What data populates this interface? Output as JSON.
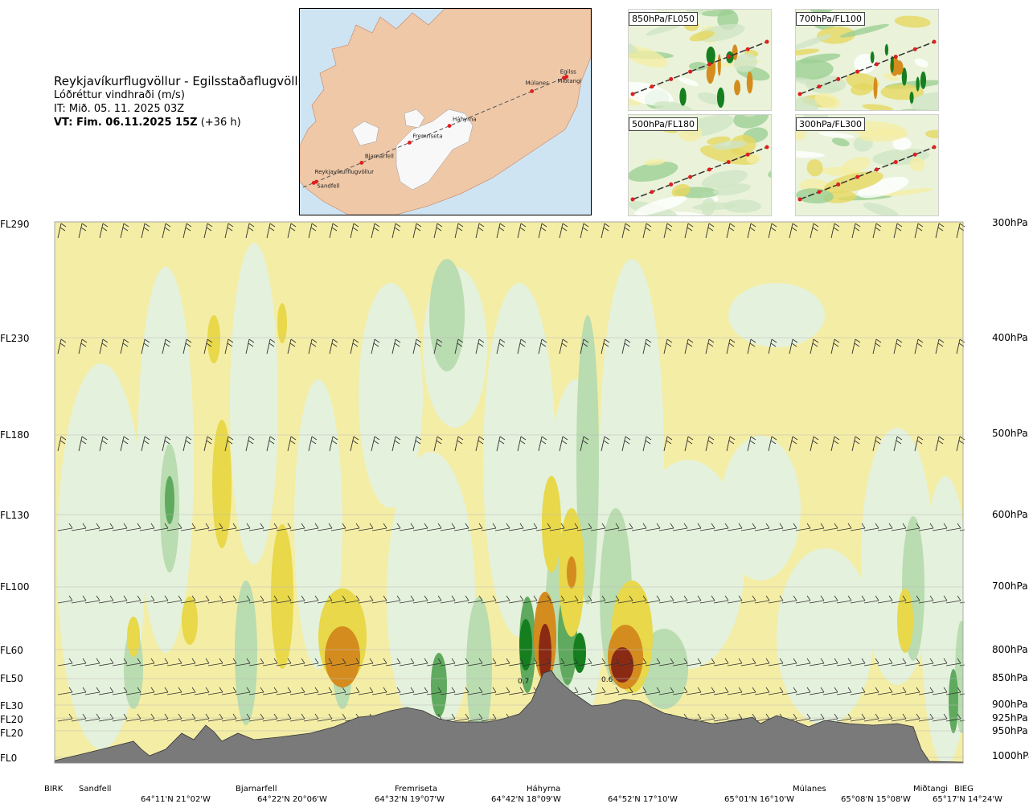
{
  "header": {
    "route": "Reykjavíkurflugvöllur - Egilsstaðaflugvöllur",
    "parameter": "Lóðréttur vindhraði (m/s)",
    "issue_time": "IT: Mið. 05. 11. 2025 03Z",
    "valid_label": "VT: Fim. 06.11.2025 15Z",
    "valid_offset": "(+36 h)"
  },
  "map": {
    "places": [
      "Reykjavíkurflugvöllur",
      "Sandfell",
      "Bjarnarfell",
      "Fremriseta",
      "Háhyrna",
      "Múlanes",
      "Egilss",
      "Miðtangi"
    ]
  },
  "thumbnails": [
    {
      "label": "850hPa/FL050"
    },
    {
      "label": "700hPa/FL100"
    },
    {
      "label": "500hPa/FL180"
    },
    {
      "label": "300hPa/FL300"
    }
  ],
  "colors": {
    "terrain": "#7a7a7a",
    "positive_light": "#f5efa6",
    "positive_mid": "#e8d84a",
    "positive_strong": "#d48c1e",
    "positive_max": "#8b2a14",
    "negative_light": "#e4f1dc",
    "negative_mid": "#b9dcb0",
    "negative_strong": "#5faa5e",
    "negative_max": "#157f1f"
  },
  "chart_data": {
    "type": "heatmap",
    "title": "Lóðréttur vindhraði (m/s)",
    "y_levels_fl": [
      "FL290",
      "FL230",
      "FL180",
      "FL130",
      "FL100",
      "FL60",
      "FL50",
      "FL30",
      "FL20",
      "FL20",
      "FL0"
    ],
    "y_levels_hpa": [
      "300hPa",
      "400hPa",
      "500hPa",
      "600hPa",
      "700hPa",
      "800hPa",
      "850hPa",
      "900hPa",
      "925hPa",
      "950hPa",
      "1000hPa"
    ],
    "stations": [
      "BIRK",
      "Sandfell",
      "Bjarnarfell",
      "Fremriseta",
      "Háhyrna",
      "Múlanes",
      "Miðtangi",
      "BIEG"
    ],
    "coordinates": [
      "64°11'N 21°02'W",
      "64°22'N 20°06'W",
      "64°32'N 19°07'W",
      "64°42'N 18°09'W",
      "64°52'N 17°10'W",
      "65°01'N 16°10'W",
      "65°08'N 15°08'W",
      "65°17'N 14°24'W"
    ],
    "annotations": [
      {
        "text": "0.7",
        "at_station": "Háhyrna"
      },
      {
        "text": "0.6",
        "at_coordinate": "64°52'N 17°10'W"
      }
    ]
  }
}
